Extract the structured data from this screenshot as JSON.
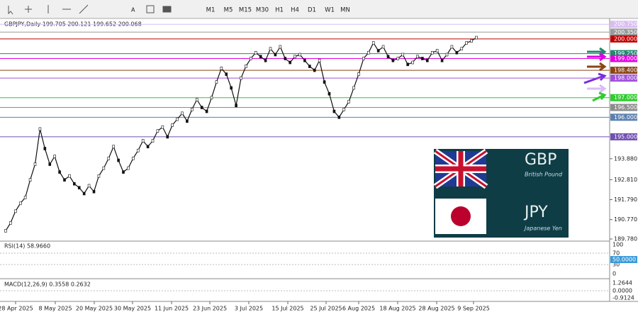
{
  "toolbar": {
    "timeframes": [
      "M1",
      "M5",
      "M15",
      "M30",
      "H1",
      "H4",
      "D1",
      "W1",
      "MN"
    ]
  },
  "chart": {
    "header": "GBPJPY,Daily  199.705 200.121 199.652 200.068",
    "closes": [
      190.2,
      190.6,
      191.2,
      191.6,
      191.9,
      192.8,
      193.6,
      195.4,
      194.4,
      193.6,
      194.0,
      193.2,
      192.8,
      193.0,
      192.6,
      192.4,
      192.1,
      192.5,
      192.2,
      193.0,
      193.4,
      193.9,
      194.5,
      193.8,
      193.2,
      193.4,
      193.9,
      194.3,
      194.8,
      194.5,
      194.8,
      195.3,
      195.5,
      195.0,
      195.6,
      195.9,
      196.2,
      195.8,
      196.4,
      196.9,
      196.5,
      196.3,
      197.0,
      197.8,
      198.5,
      198.2,
      197.5,
      196.6,
      198.0,
      198.6,
      199.0,
      199.3,
      199.1,
      198.9,
      199.5,
      199.2,
      199.6,
      199.0,
      198.8,
      199.1,
      199.2,
      198.9,
      198.6,
      198.4,
      198.9,
      197.8,
      197.2,
      196.3,
      196.0,
      196.4,
      196.8,
      197.5,
      198.2,
      199.0,
      199.3,
      199.8,
      199.4,
      199.6,
      199.1,
      198.9,
      199.0,
      199.2,
      198.7,
      198.8,
      199.1,
      199.0,
      198.9,
      199.3,
      199.4,
      198.9,
      199.2,
      199.6,
      199.3,
      199.5,
      199.8,
      199.9,
      200.068
    ],
    "ylim": [
      189.6,
      201.0
    ],
    "yticks": [
      {
        "value": 193.88,
        "label": "193.880"
      },
      {
        "value": 192.81,
        "label": "192.810"
      },
      {
        "value": 191.79,
        "label": "191.790"
      },
      {
        "value": 190.77,
        "label": "190.770"
      },
      {
        "value": 189.78,
        "label": "189.780"
      }
    ],
    "levels": [
      {
        "value": 200.75,
        "label": "200.750",
        "color": "#d9bdf2"
      },
      {
        "value": 200.35,
        "label": "200.350",
        "color": "#9a9a9a"
      },
      {
        "value": 200.0,
        "label": "200.000",
        "color": "#c00000"
      },
      {
        "value": 199.25,
        "label": "199.250",
        "color": "#1f8a6e"
      },
      {
        "value": 199.0,
        "label": "199.000",
        "color": "#e000e0"
      },
      {
        "value": 198.4,
        "label": "198.400",
        "color": "#8b4513"
      },
      {
        "value": 198.0,
        "label": "198.000",
        "color": "#a050d8"
      },
      {
        "value": 197.0,
        "label": "197.000",
        "color": "#2ecc2e"
      },
      {
        "value": 196.5,
        "label": "196.500",
        "color": "#8c8c8c"
      },
      {
        "value": 196.0,
        "label": "196.000",
        "color": "#5b7fb0"
      },
      {
        "value": 195.0,
        "label": "195.000",
        "color": "#7050b0"
      }
    ],
    "dates": [
      "28 Apr 2025",
      "8 May 2025",
      "20 May 2025",
      "30 May 2025",
      "11 Jun 2025",
      "23 Jun 2025",
      "3 Jul 2025",
      "15 Jul 2025",
      "25 Jul 2025",
      "6 Aug 2025",
      "18 Aug 2025",
      "28 Aug 2025",
      "9 Sep 2025"
    ],
    "logo": {
      "base": "GBP",
      "base_name": "British Pound",
      "quote": "JPY",
      "quote_name": "Japanese Yen"
    }
  },
  "rsi": {
    "label": "RSI(14) 58.9660",
    "ticks": [
      "100",
      "70",
      "30",
      "0"
    ],
    "current": "50.0000"
  },
  "macd": {
    "label": "MACD(12,26,9) 0.3558 0.2632",
    "ticks": [
      "1.2644",
      "0.0000",
      "-0.9124"
    ]
  }
}
